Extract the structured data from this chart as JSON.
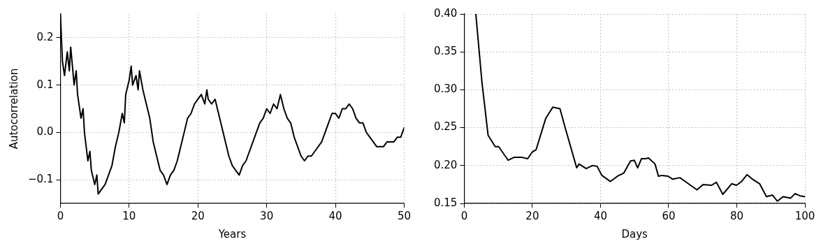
{
  "chart_data": [
    {
      "type": "line",
      "xlabel": "Years",
      "ylabel": "Autocorrelation",
      "xlim": [
        0,
        50
      ],
      "ylim": [
        -0.15,
        0.25
      ],
      "xticks": [
        0,
        10,
        20,
        30,
        40,
        50
      ],
      "yticks": [
        -0.1,
        {
          "value": 0,
          "label": "0.0"
        },
        0.1,
        0.2
      ],
      "grid": true,
      "legend": false,
      "marker": "none",
      "line_style": "solid",
      "series": [
        {
          "color": "#000000",
          "x": [
            0,
            0.3,
            0.6,
            1,
            1.3,
            1.5,
            2,
            2.3,
            2.5,
            3,
            3.3,
            3.5,
            4,
            4.3,
            4.5,
            5,
            5.3,
            5.5,
            6,
            6.5,
            7,
            7.5,
            8,
            8.5,
            9,
            9.3,
            9.5,
            10,
            10.3,
            10.5,
            11,
            11.3,
            11.5,
            12,
            12.5,
            13,
            13.5,
            14,
            14.5,
            15,
            15.5,
            16,
            16.5,
            17,
            17.5,
            18,
            18.5,
            19,
            19.5,
            20,
            20.5,
            21,
            21.3,
            21.5,
            22,
            22.5,
            23,
            23.5,
            24,
            24.5,
            25,
            25.5,
            26,
            26.5,
            27,
            27.5,
            28,
            28.5,
            29,
            29.5,
            30,
            30.5,
            31,
            31.5,
            32,
            32.5,
            33,
            33.5,
            34,
            34.5,
            35,
            35.5,
            36,
            36.5,
            37,
            37.5,
            38,
            38.5,
            39,
            39.5,
            40,
            40.5,
            41,
            41.5,
            42,
            42.5,
            43,
            43.5,
            44,
            44.5,
            45,
            45.5,
            46,
            46.5,
            47,
            47.5,
            48,
            48.5,
            49,
            49.5,
            50
          ],
          "values": [
            0.25,
            0.15,
            0.12,
            0.17,
            0.13,
            0.18,
            0.1,
            0.13,
            0.08,
            0.03,
            0.05,
            0.0,
            -0.06,
            -0.04,
            -0.08,
            -0.11,
            -0.09,
            -0.13,
            -0.12,
            -0.11,
            -0.09,
            -0.07,
            -0.03,
            0.0,
            0.04,
            0.02,
            0.08,
            0.11,
            0.14,
            0.1,
            0.12,
            0.09,
            0.13,
            0.09,
            0.06,
            0.03,
            -0.02,
            -0.05,
            -0.08,
            -0.09,
            -0.11,
            -0.09,
            -0.08,
            -0.06,
            -0.03,
            0.0,
            0.03,
            0.04,
            0.06,
            0.07,
            0.08,
            0.06,
            0.09,
            0.07,
            0.06,
            0.07,
            0.04,
            0.01,
            -0.02,
            -0.05,
            -0.07,
            -0.08,
            -0.09,
            -0.07,
            -0.06,
            -0.04,
            -0.02,
            0.0,
            0.02,
            0.03,
            0.05,
            0.04,
            0.06,
            0.05,
            0.08,
            0.05,
            0.03,
            0.02,
            -0.01,
            -0.03,
            -0.05,
            -0.06,
            -0.05,
            -0.05,
            -0.04,
            -0.03,
            -0.02,
            0.0,
            0.02,
            0.04,
            0.04,
            0.03,
            0.05,
            0.05,
            0.06,
            0.05,
            0.03,
            0.02,
            0.02,
            0.0,
            -0.01,
            -0.02,
            -0.03,
            -0.03,
            -0.03,
            -0.02,
            -0.02,
            -0.02,
            -0.01,
            -0.01,
            0.01
          ]
        }
      ]
    },
    {
      "type": "line",
      "xlabel": "Days",
      "xlim": [
        0,
        100
      ],
      "ylim": [
        0.15,
        0.4
      ],
      "xticks": [
        0,
        20,
        40,
        60,
        80,
        100
      ],
      "yticks": [
        0.15,
        {
          "value": 0.2,
          "label": "0.20"
        },
        0.25,
        {
          "value": 0.3,
          "label": "0.30"
        },
        0.35,
        {
          "value": 0.4,
          "label": "0.40"
        }
      ],
      "grid": true,
      "legend": false,
      "marker": "none",
      "line_style": "solid",
      "series": [
        {
          "color": "#000000",
          "x": [
            3.4,
            5.2,
            7,
            9.1,
            10.1,
            12.9,
            14.7,
            16.8,
            18.6,
            20,
            21.1,
            23.9,
            26,
            28.1,
            29.5,
            33,
            33.7,
            35.8,
            37.6,
            39,
            40.4,
            42.9,
            45,
            46.8,
            48.8,
            49.9,
            50.9,
            52,
            53.1,
            54.1,
            56,
            57,
            58.1,
            59.8,
            61.2,
            63.3,
            65.5,
            68.3,
            70.1,
            72.6,
            74,
            75.9,
            78.5,
            79.9,
            81.4,
            83,
            84.6,
            86.7,
            88.7,
            90.5,
            91.9,
            93.6,
            95.8,
            97.1,
            98.6,
            100
          ],
          "values": [
            0.4,
            0.31,
            0.24,
            0.225,
            0.225,
            0.207,
            0.211,
            0.211,
            0.209,
            0.218,
            0.221,
            0.262,
            0.277,
            0.275,
            0.252,
            0.197,
            0.202,
            0.196,
            0.2,
            0.199,
            0.187,
            0.179,
            0.186,
            0.19,
            0.206,
            0.207,
            0.197,
            0.209,
            0.209,
            0.21,
            0.202,
            0.186,
            0.187,
            0.186,
            0.182,
            0.184,
            0.177,
            0.168,
            0.175,
            0.174,
            0.178,
            0.162,
            0.176,
            0.174,
            0.179,
            0.188,
            0.182,
            0.176,
            0.159,
            0.161,
            0.153,
            0.159,
            0.157,
            0.163,
            0.16,
            0.159
          ]
        }
      ]
    }
  ]
}
